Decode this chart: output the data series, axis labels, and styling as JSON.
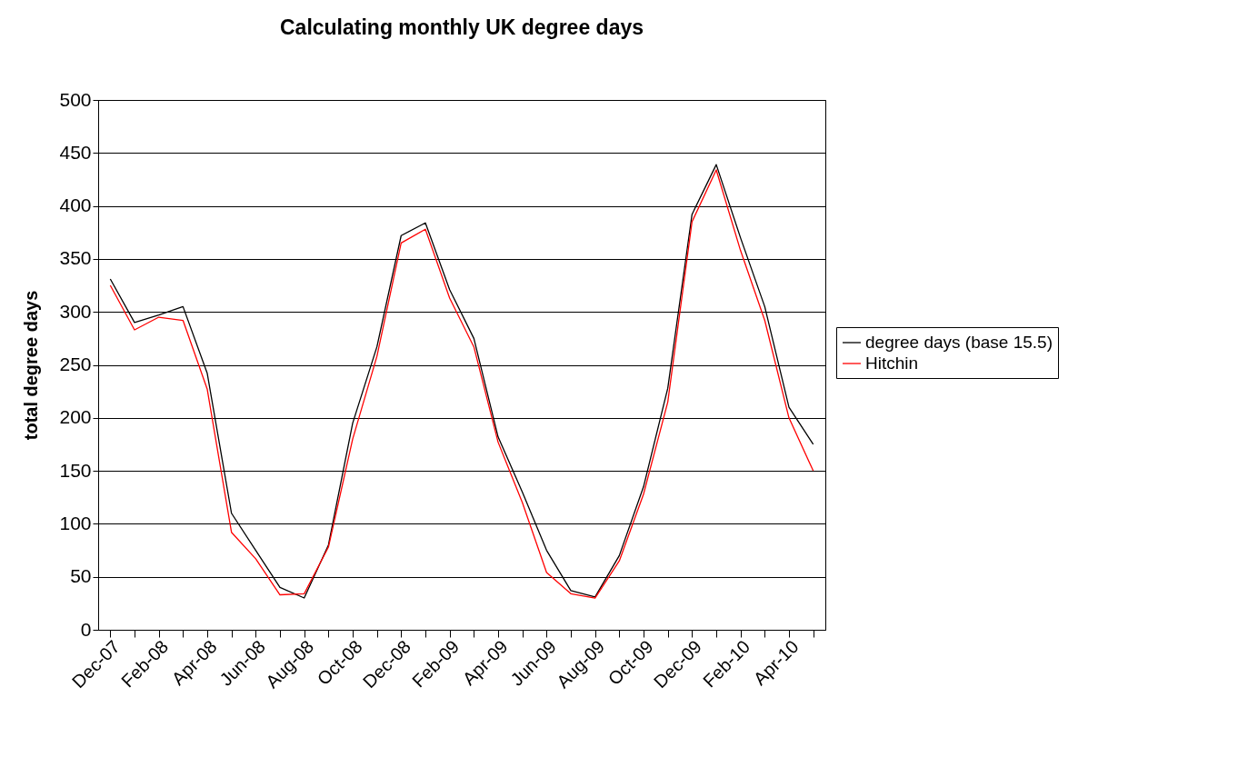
{
  "chart_data": {
    "type": "line",
    "title": "Calculating monthly UK degree days",
    "ylabel": "total degree days",
    "categories": [
      "Dec-07",
      null,
      "Feb-08",
      null,
      "Apr-08",
      null,
      "Jun-08",
      null,
      "Aug-08",
      null,
      "Oct-08",
      null,
      "Dec-08",
      null,
      "Feb-09",
      null,
      "Apr-09",
      null,
      "Jun-09",
      null,
      "Aug-09",
      null,
      "Oct-09",
      null,
      "Dec-09",
      null,
      "Feb-10",
      null,
      "Apr-10",
      null
    ],
    "series": [
      {
        "name": "degree days (base 15.5)",
        "color": "#000000",
        "values": [
          331,
          290,
          297,
          305,
          242,
          110,
          75,
          40,
          30,
          80,
          195,
          267,
          372,
          384,
          321,
          275,
          182,
          130,
          75,
          37,
          31,
          70,
          135,
          228,
          392,
          439,
          370,
          305,
          210,
          175
        ]
      },
      {
        "name": "Hitchin",
        "color": "#ff0000",
        "values": [
          325,
          283,
          295,
          292,
          227,
          92,
          67,
          33,
          34,
          78,
          180,
          258,
          365,
          378,
          313,
          267,
          177,
          120,
          54,
          34,
          30,
          65,
          128,
          215,
          385,
          434,
          358,
          292,
          200,
          150
        ]
      }
    ],
    "ylim": [
      0,
      500
    ],
    "yticks": [
      0,
      50,
      100,
      150,
      200,
      250,
      300,
      350,
      400,
      450,
      500
    ],
    "grid": "y",
    "legend": "right",
    "marker": "none",
    "line_style": "solid"
  }
}
